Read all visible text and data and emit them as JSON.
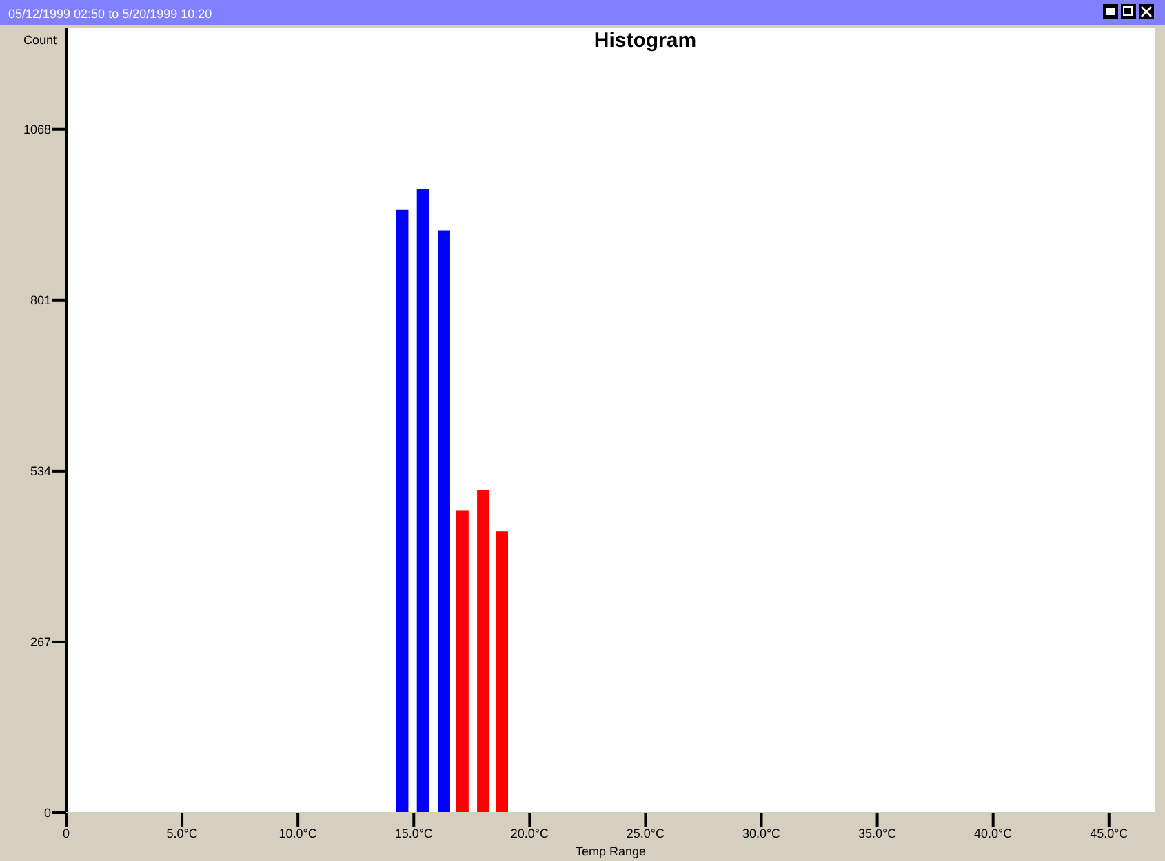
{
  "chart_data": {
    "type": "bar",
    "title": "Histogram",
    "xlabel": "Temp Range",
    "ylabel": "Count",
    "annotations": [
      "05/12/1999 02:50 to 5/20/1999 10:20"
    ],
    "x": [
      14.5,
      15.4,
      16.3,
      17.1,
      18.0,
      18.8
    ],
    "values": [
      942,
      975,
      910,
      472,
      504,
      440
    ],
    "colors": [
      "#0000ff",
      "#0000ff",
      "#0000ff",
      "#ff0000",
      "#ff0000",
      "#ff0000"
    ],
    "xlim": [
      0,
      47
    ],
    "ylim": [
      0,
      1227
    ],
    "xticks": [
      0,
      {
        "value": 5,
        "label": "5.0°C"
      },
      {
        "value": 10,
        "label": "10.0°C"
      },
      {
        "value": 15,
        "label": "15.0°C"
      },
      {
        "value": 20,
        "label": "20.0°C"
      },
      {
        "value": 25,
        "label": "25.0°C"
      },
      {
        "value": 30,
        "label": "30.0°C"
      },
      {
        "value": 35,
        "label": "35.0°C"
      },
      {
        "value": 40,
        "label": "40.0°C"
      },
      {
        "value": 45,
        "label": "45.0°C"
      }
    ],
    "yticks": [
      0,
      267,
      534,
      801,
      1068
    ],
    "grid": false
  }
}
